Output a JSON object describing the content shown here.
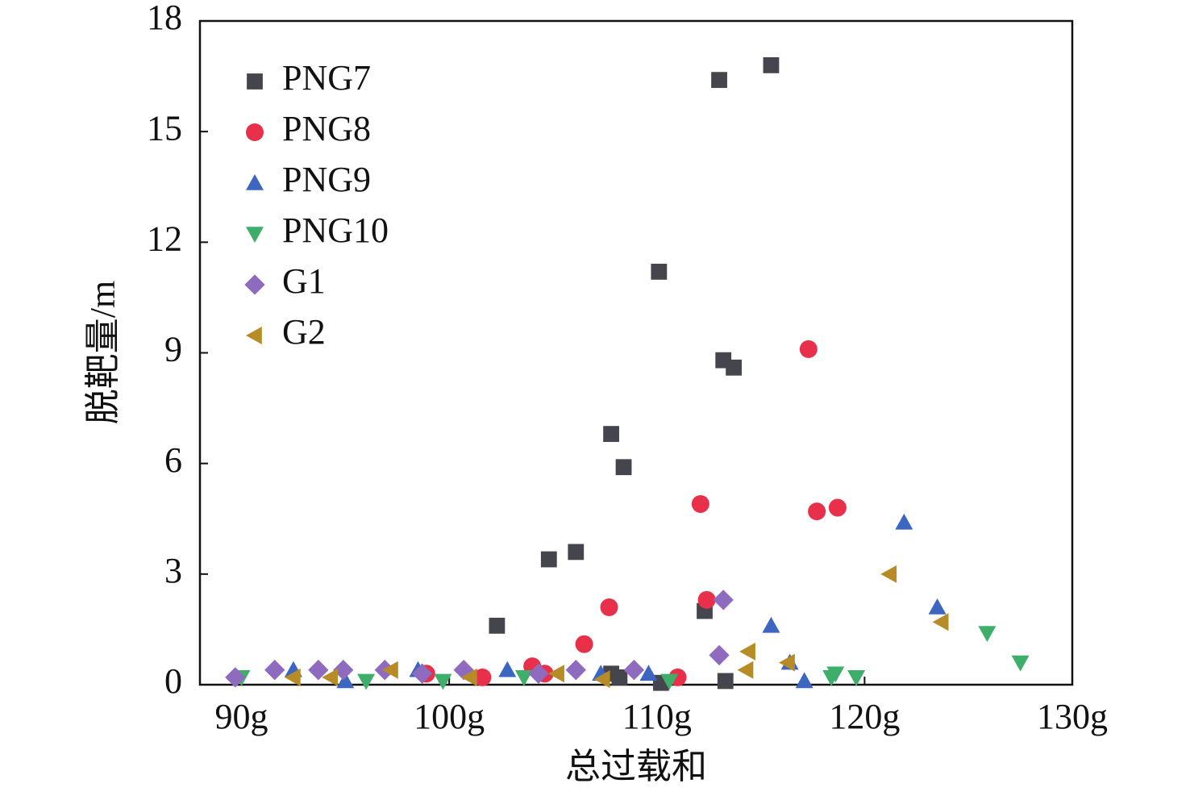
{
  "chart_data": {
    "type": "scatter",
    "x_label": "总过载和",
    "y_label": "脱靶量/m",
    "xlim": [
      88,
      130
    ],
    "ylim": [
      0,
      18
    ],
    "xticks": [
      {
        "value": 90,
        "label": "90g"
      },
      {
        "value": 100,
        "label": "100g"
      },
      {
        "value": 110,
        "label": "110g"
      },
      {
        "value": 120,
        "label": "120g"
      },
      {
        "value": 130,
        "label": "130g"
      }
    ],
    "yticks": [
      0,
      3,
      6,
      9,
      12,
      15,
      18
    ],
    "legend": "upper-left",
    "series": [
      {
        "name": "PNG7",
        "color": "#45464d",
        "marker": "square",
        "x": [
          102.3,
          104.8,
          106.1,
          107.8,
          108.4,
          110.1,
          113.0,
          115.5,
          113.2,
          113.7,
          112.3,
          113.3,
          107.8,
          108.2,
          110.2
        ],
        "values": [
          1.6,
          3.4,
          3.6,
          6.8,
          5.9,
          11.2,
          16.4,
          16.8,
          8.8,
          8.6,
          2.0,
          0.1,
          0.3,
          0.2,
          0.05
        ]
      },
      {
        "name": "PNG8",
        "color": "#e8304a",
        "marker": "circle",
        "x": [
          104.0,
          104.6,
          106.5,
          107.7,
          112.1,
          112.4,
          117.3,
          117.7,
          118.7,
          111.0,
          101.6,
          98.9
        ],
        "values": [
          0.5,
          0.3,
          1.1,
          2.1,
          4.9,
          2.3,
          9.1,
          4.7,
          4.8,
          0.2,
          0.2,
          0.3
        ]
      },
      {
        "name": "PNG9",
        "color": "#3c66c0",
        "marker": "triangle-up",
        "x": [
          92.5,
          95.0,
          98.5,
          102.8,
          107.3,
          109.6,
          115.5,
          116.4,
          117.1,
          121.9,
          123.5
        ],
        "values": [
          0.4,
          0.1,
          0.4,
          0.4,
          0.3,
          0.3,
          1.6,
          0.6,
          0.1,
          4.4,
          2.1
        ]
      },
      {
        "name": "PNG10",
        "color": "#3daf6a",
        "marker": "triangle-down",
        "x": [
          90.0,
          96.0,
          99.7,
          103.6,
          110.6,
          118.4,
          118.6,
          119.6,
          125.9,
          127.5
        ],
        "values": [
          0.2,
          0.1,
          0.1,
          0.2,
          0.1,
          0.2,
          0.3,
          0.2,
          1.4,
          0.6
        ]
      },
      {
        "name": "G1",
        "color": "#8e6bbf",
        "marker": "diamond",
        "x": [
          89.7,
          91.6,
          93.7,
          94.9,
          96.9,
          98.7,
          100.7,
          104.3,
          106.1,
          108.9,
          113.0,
          113.2
        ],
        "values": [
          0.2,
          0.4,
          0.4,
          0.4,
          0.4,
          0.3,
          0.4,
          0.3,
          0.4,
          0.4,
          0.8,
          2.3
        ]
      },
      {
        "name": "G2",
        "color": "#b78b26",
        "marker": "triangle-left",
        "x": [
          92.5,
          94.3,
          97.2,
          101.0,
          105.2,
          107.4,
          114.3,
          114.4,
          116.3,
          121.2,
          123.7
        ],
        "values": [
          0.2,
          0.2,
          0.4,
          0.2,
          0.3,
          0.15,
          0.4,
          0.9,
          0.6,
          3.0,
          1.7
        ]
      }
    ]
  }
}
